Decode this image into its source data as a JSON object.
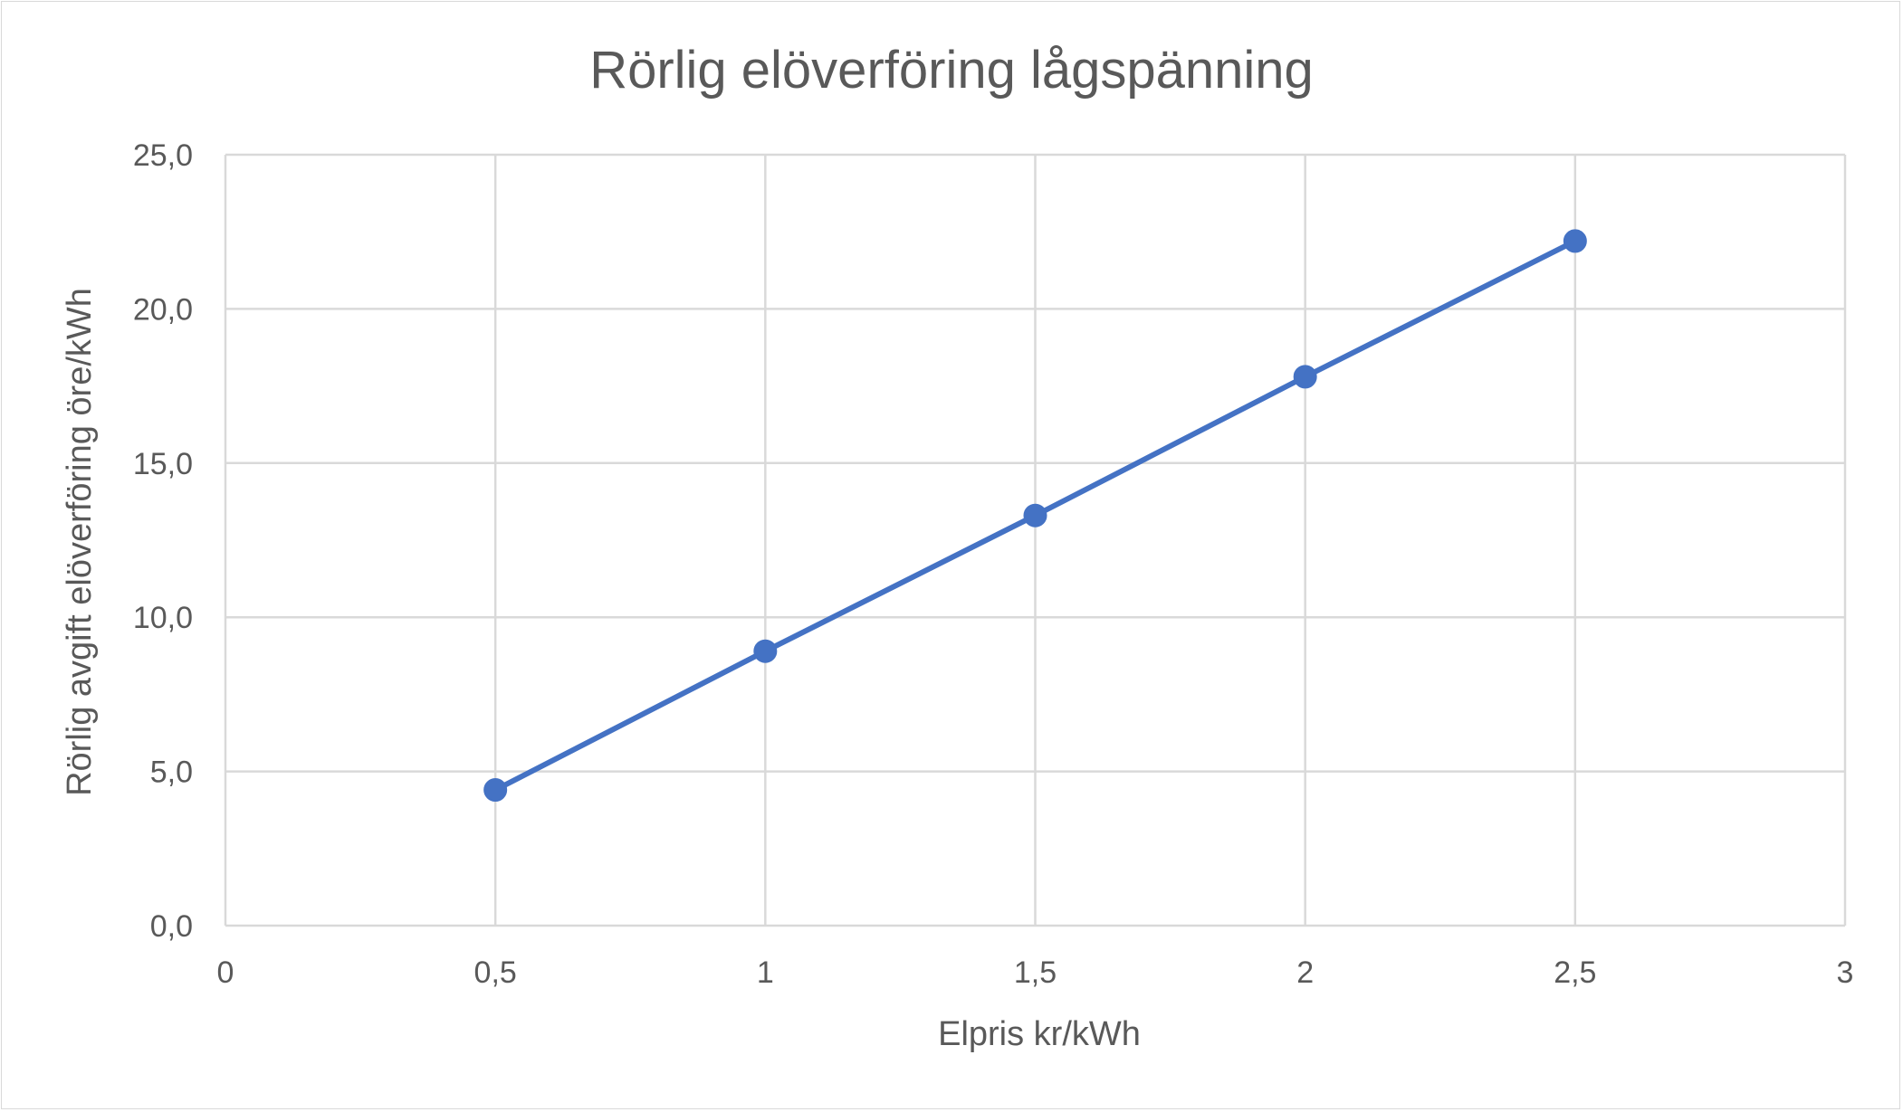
{
  "chart_data": {
    "type": "line",
    "title": "Rörlig elöverföring lågspänning",
    "xlabel": "Elpris kr/kWh",
    "ylabel": "Rörlig avgift elöverföring öre/kWh",
    "xlim": [
      0,
      3
    ],
    "ylim": [
      0,
      25
    ],
    "x_ticks": [
      0,
      0.5,
      1,
      1.5,
      2,
      2.5,
      3
    ],
    "x_tick_labels": [
      "0",
      "0,5",
      "1",
      "1,5",
      "2",
      "2,5",
      "3"
    ],
    "y_ticks": [
      0,
      5,
      10,
      15,
      20,
      25
    ],
    "y_tick_labels": [
      "0,0",
      "5,0",
      "10,0",
      "15,0",
      "20,0",
      "25,0"
    ],
    "grid": true,
    "legend": "none",
    "series": [
      {
        "color": "#4472c4",
        "x": [
          0.5,
          1,
          1.5,
          2,
          2.5
        ],
        "y": [
          4.4,
          8.9,
          13.3,
          17.8,
          22.2
        ]
      }
    ]
  }
}
